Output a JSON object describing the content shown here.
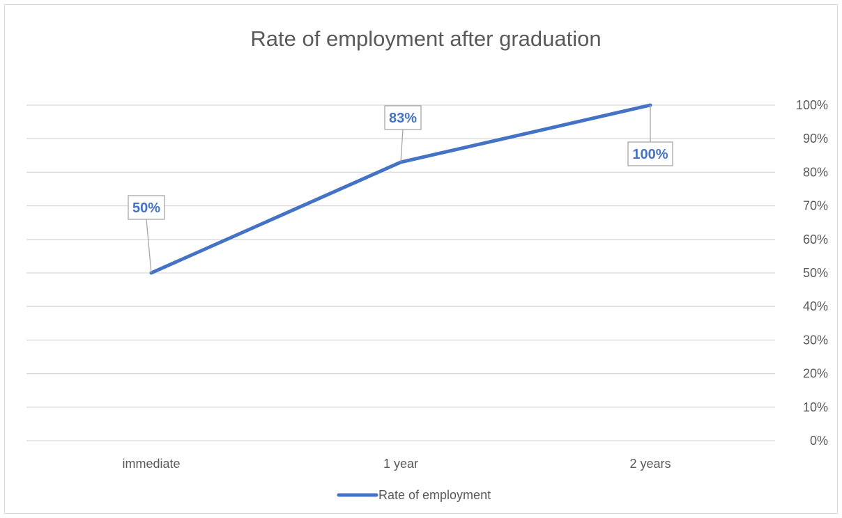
{
  "chart_data": {
    "type": "line",
    "title": "Rate of employment after graduation",
    "categories": [
      "immediate",
      "1 year",
      "2 years"
    ],
    "series": [
      {
        "name": "Rate of employment",
        "values": [
          50,
          83,
          100
        ],
        "data_labels": [
          "50%",
          "83%",
          "100%"
        ]
      }
    ],
    "y_axis": {
      "position": "right",
      "min": 0,
      "max": 100,
      "step": 10,
      "tick_labels": [
        "0%",
        "10%",
        "20%",
        "30%",
        "40%",
        "50%",
        "60%",
        "70%",
        "80%",
        "90%",
        "100%"
      ]
    },
    "grid": true,
    "legend": "bottom",
    "colors": {
      "series": "#4472c4",
      "grid": "#d9d9d9",
      "text": "#595959",
      "label_border": "#a6a6a6"
    }
  }
}
